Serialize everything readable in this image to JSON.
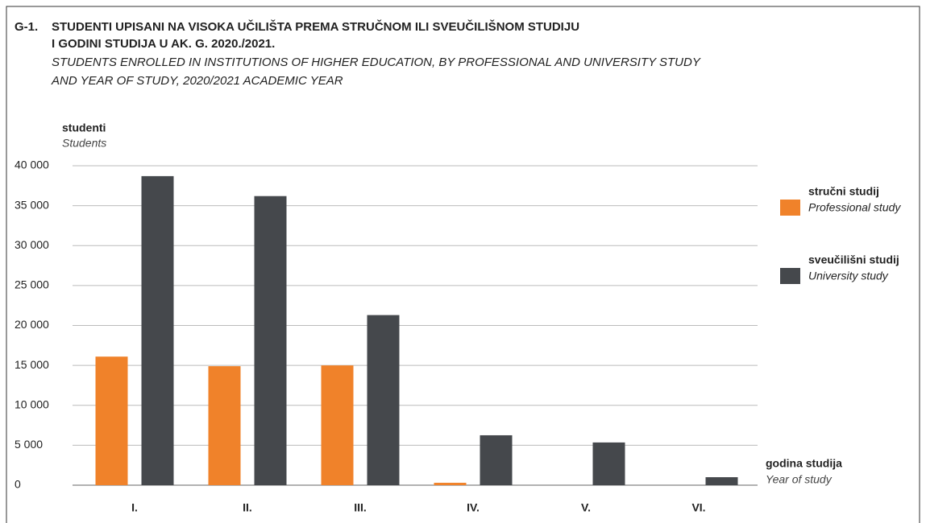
{
  "chart_data": {
    "type": "bar",
    "label": "G-1.",
    "title": [
      "STUDENTI UPISANI NA VISOKA UČILIŠTA PREMA STRUČNOM ILI SVEUČILIŠNOM STUDIJU",
      "I GODINI STUDIJA U AK. G. 2020./2021."
    ],
    "subtitle": [
      "STUDENTS ENROLLED IN INSTITUTIONS OF HIGHER EDUCATION, BY PROFESSIONAL AND UNIVERSITY STUDY",
      "AND YEAR OF STUDY, 2020/2021 ACADEMIC YEAR"
    ],
    "y_label": [
      "studenti",
      "Students"
    ],
    "x_label": [
      "godina studija",
      "Year of study"
    ],
    "categories": [
      "I.",
      "II.",
      "III.",
      "IV.",
      "V.",
      "VI."
    ],
    "series": [
      {
        "name": "stručni studij",
        "name_en": "Professional study",
        "color": "#f0822a",
        "values": [
          16100,
          14900,
          15000,
          300,
          null,
          null
        ]
      },
      {
        "name": "sveučilišni studij",
        "name_en": "University study",
        "color": "#45484c",
        "values": [
          38700,
          36200,
          21300,
          6250,
          5350,
          1000
        ]
      }
    ],
    "ylim": [
      0,
      40000
    ],
    "yticks": [
      0,
      {
        "value": 5000,
        "label": "5 000"
      },
      {
        "value": 10000,
        "label": "10 000"
      },
      {
        "value": 15000,
        "label": "15 000"
      },
      {
        "value": 20000,
        "label": "20 000"
      },
      {
        "value": 25000,
        "label": "25 000"
      },
      {
        "value": 30000,
        "label": "30 000"
      },
      {
        "value": 35000,
        "label": "35 000"
      },
      {
        "value": 40000,
        "label": "40 000"
      }
    ],
    "grid": true
  }
}
